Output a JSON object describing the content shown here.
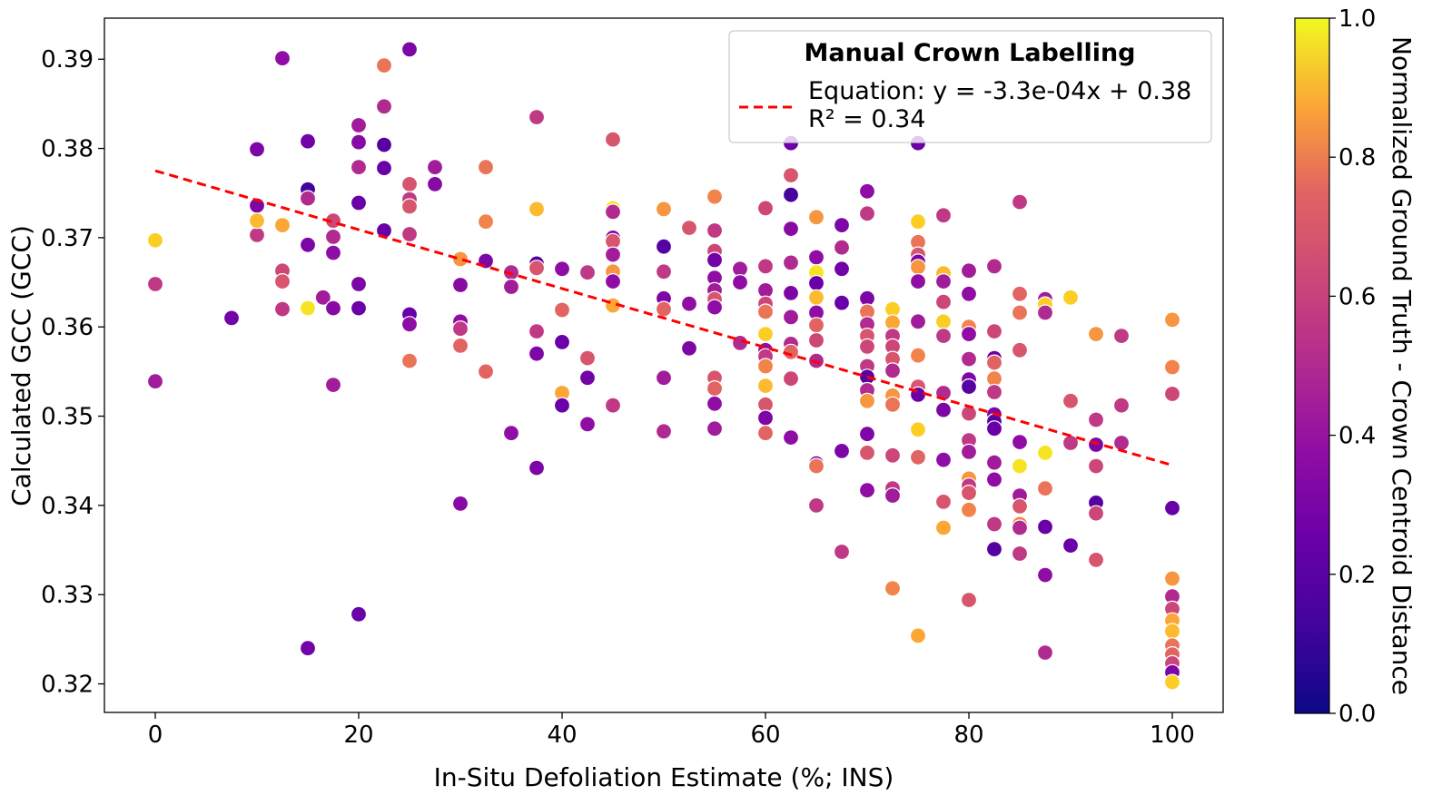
{
  "chart_data": {
    "type": "scatter",
    "xlabel": "In-Situ Defoliation Estimate (%; INS)",
    "ylabel": "Calculated GCC (GCC)",
    "xlim": [
      -5,
      105
    ],
    "ylim": [
      0.3168,
      0.3946
    ],
    "x_ticks": [
      0,
      20,
      40,
      60,
      80,
      100
    ],
    "x_tick_labels": [
      "0",
      "20",
      "40",
      "60",
      "80",
      "100"
    ],
    "y_ticks": [
      0.32,
      0.33,
      0.34,
      0.35,
      0.36,
      0.37,
      0.38,
      0.39
    ],
    "y_tick_labels": [
      "0.32",
      "0.33",
      "0.34",
      "0.35",
      "0.36",
      "0.37",
      "0.38",
      "0.39"
    ],
    "legend": {
      "title": "Manual Crown Labelling",
      "entry_line1": "Equation: y = -3.3e-04x + 0.38",
      "entry_line2": "R² = 0.34",
      "placement": "top-right"
    },
    "regression": {
      "slope": -0.00033,
      "intercept": 0.3775,
      "x_range": [
        0,
        100
      ],
      "color": "#ff0000",
      "style": "dashed"
    },
    "colorbar": {
      "label": "Normalized Ground Truth - Crown Centroid Distance",
      "colormap": "plasma",
      "range": [
        0,
        1
      ],
      "ticks": [
        0.0,
        0.2,
        0.4,
        0.6,
        0.8,
        1.0
      ],
      "tick_labels": [
        "0.0",
        "0.2",
        "0.4",
        "0.6",
        "0.8",
        "1.0"
      ]
    },
    "points": [
      [
        0,
        0.3697,
        0.9
      ],
      [
        0,
        0.3648,
        0.45
      ],
      [
        0,
        0.3539,
        0.35
      ],
      [
        7.5,
        0.361,
        0.22
      ],
      [
        10,
        0.3799,
        0.25
      ],
      [
        10,
        0.3736,
        0.25
      ],
      [
        10,
        0.3703,
        0.45
      ],
      [
        10,
        0.3719,
        0.85
      ],
      [
        12.5,
        0.3901,
        0.3
      ],
      [
        12.5,
        0.3663,
        0.5
      ],
      [
        12.5,
        0.3651,
        0.55
      ],
      [
        12.5,
        0.362,
        0.45
      ],
      [
        12.5,
        0.3714,
        0.8
      ],
      [
        15,
        0.3808,
        0.22
      ],
      [
        15,
        0.3754,
        0.1
      ],
      [
        15,
        0.3744,
        0.4
      ],
      [
        15,
        0.3692,
        0.25
      ],
      [
        15,
        0.3621,
        0.95
      ],
      [
        15,
        0.324,
        0.22
      ],
      [
        16.5,
        0.3633,
        0.35
      ],
      [
        17.5,
        0.3719,
        0.5
      ],
      [
        17.5,
        0.3701,
        0.4
      ],
      [
        17.5,
        0.3683,
        0.3
      ],
      [
        17.5,
        0.3621,
        0.28
      ],
      [
        17.5,
        0.3535,
        0.35
      ],
      [
        20,
        0.3826,
        0.35
      ],
      [
        20,
        0.3807,
        0.28
      ],
      [
        20,
        0.3779,
        0.4
      ],
      [
        20,
        0.3739,
        0.2
      ],
      [
        20,
        0.3648,
        0.25
      ],
      [
        20,
        0.3621,
        0.2
      ],
      [
        20,
        0.3278,
        0.2
      ],
      [
        22.5,
        0.3893,
        0.65
      ],
      [
        22.5,
        0.3847,
        0.4
      ],
      [
        22.5,
        0.3804,
        0.15
      ],
      [
        22.5,
        0.3778,
        0.2
      ],
      [
        22.5,
        0.3708,
        0.2
      ],
      [
        25,
        0.3911,
        0.25
      ],
      [
        25,
        0.376,
        0.55
      ],
      [
        25,
        0.3743,
        0.45
      ],
      [
        25,
        0.3735,
        0.55
      ],
      [
        25,
        0.3704,
        0.45
      ],
      [
        25,
        0.3614,
        0.2
      ],
      [
        25,
        0.3603,
        0.3
      ],
      [
        25,
        0.3562,
        0.65
      ],
      [
        27.5,
        0.3779,
        0.35
      ],
      [
        27.5,
        0.376,
        0.28
      ],
      [
        30,
        0.3676,
        0.75
      ],
      [
        30,
        0.3647,
        0.28
      ],
      [
        30,
        0.3606,
        0.3
      ],
      [
        30,
        0.3598,
        0.45
      ],
      [
        30,
        0.3579,
        0.6
      ],
      [
        30,
        0.3402,
        0.28
      ],
      [
        32.5,
        0.3779,
        0.65
      ],
      [
        32.5,
        0.3718,
        0.7
      ],
      [
        32.5,
        0.3674,
        0.25
      ],
      [
        32.5,
        0.355,
        0.6
      ],
      [
        35,
        0.3661,
        0.4
      ],
      [
        35,
        0.3645,
        0.35
      ],
      [
        35,
        0.3481,
        0.3
      ],
      [
        37.5,
        0.3835,
        0.45
      ],
      [
        37.5,
        0.3732,
        0.85
      ],
      [
        37.5,
        0.3671,
        0.15
      ],
      [
        37.5,
        0.3666,
        0.55
      ],
      [
        37.5,
        0.3595,
        0.45
      ],
      [
        37.5,
        0.357,
        0.25
      ],
      [
        37.5,
        0.3442,
        0.25
      ],
      [
        40,
        0.3665,
        0.3
      ],
      [
        40,
        0.3619,
        0.6
      ],
      [
        40,
        0.3583,
        0.2
      ],
      [
        40,
        0.3526,
        0.8
      ],
      [
        40,
        0.3512,
        0.2
      ],
      [
        42.5,
        0.3661,
        0.45
      ],
      [
        42.5,
        0.3565,
        0.55
      ],
      [
        42.5,
        0.3543,
        0.22
      ],
      [
        42.5,
        0.3491,
        0.3
      ],
      [
        45,
        0.381,
        0.55
      ],
      [
        45,
        0.3733,
        0.95
      ],
      [
        45,
        0.3729,
        0.4
      ],
      [
        45,
        0.37,
        0.25
      ],
      [
        45,
        0.3696,
        0.55
      ],
      [
        45,
        0.3681,
        0.35
      ],
      [
        45,
        0.3662,
        0.75
      ],
      [
        45,
        0.3651,
        0.3
      ],
      [
        45,
        0.3624,
        0.8
      ],
      [
        45,
        0.3512,
        0.45
      ],
      [
        50,
        0.3732,
        0.75
      ],
      [
        50,
        0.369,
        0.15
      ],
      [
        50,
        0.3662,
        0.45
      ],
      [
        50,
        0.3632,
        0.25
      ],
      [
        50,
        0.362,
        0.6
      ],
      [
        50,
        0.3543,
        0.35
      ],
      [
        50,
        0.3483,
        0.4
      ],
      [
        52.5,
        0.3711,
        0.55
      ],
      [
        52.5,
        0.3626,
        0.3
      ],
      [
        52.5,
        0.3576,
        0.25
      ],
      [
        55,
        0.3746,
        0.7
      ],
      [
        55,
        0.3708,
        0.45
      ],
      [
        55,
        0.3685,
        0.5
      ],
      [
        55,
        0.3675,
        0.22
      ],
      [
        55,
        0.3655,
        0.3
      ],
      [
        55,
        0.3641,
        0.35
      ],
      [
        55,
        0.3631,
        0.55
      ],
      [
        55,
        0.3622,
        0.3
      ],
      [
        55,
        0.3543,
        0.55
      ],
      [
        55,
        0.3531,
        0.6
      ],
      [
        55,
        0.3514,
        0.3
      ],
      [
        55,
        0.3486,
        0.35
      ],
      [
        57.5,
        0.3665,
        0.35
      ],
      [
        57.5,
        0.365,
        0.3
      ],
      [
        57.5,
        0.3582,
        0.4
      ],
      [
        60,
        0.3733,
        0.5
      ],
      [
        60,
        0.3668,
        0.45
      ],
      [
        60,
        0.3641,
        0.35
      ],
      [
        60,
        0.3626,
        0.5
      ],
      [
        60,
        0.3617,
        0.65
      ],
      [
        60,
        0.3592,
        0.9
      ],
      [
        60,
        0.3574,
        0.3
      ],
      [
        60,
        0.3567,
        0.45
      ],
      [
        60,
        0.3556,
        0.7
      ],
      [
        60,
        0.3534,
        0.85
      ],
      [
        60,
        0.3513,
        0.55
      ],
      [
        60,
        0.3498,
        0.25
      ],
      [
        60,
        0.3481,
        0.6
      ],
      [
        62.5,
        0.3806,
        0.2
      ],
      [
        62.5,
        0.377,
        0.55
      ],
      [
        62.5,
        0.3748,
        0.12
      ],
      [
        62.5,
        0.371,
        0.28
      ],
      [
        62.5,
        0.3672,
        0.4
      ],
      [
        62.5,
        0.3638,
        0.25
      ],
      [
        62.5,
        0.3611,
        0.35
      ],
      [
        62.5,
        0.3581,
        0.4
      ],
      [
        62.5,
        0.3572,
        0.6
      ],
      [
        62.5,
        0.3542,
        0.5
      ],
      [
        62.5,
        0.3476,
        0.3
      ],
      [
        65,
        0.3723,
        0.75
      ],
      [
        65,
        0.3678,
        0.3
      ],
      [
        65,
        0.3661,
        0.95
      ],
      [
        65,
        0.3649,
        0.2
      ],
      [
        65,
        0.3633,
        0.85
      ],
      [
        65,
        0.3616,
        0.3
      ],
      [
        65,
        0.3602,
        0.6
      ],
      [
        65,
        0.3585,
        0.5
      ],
      [
        65,
        0.3562,
        0.4
      ],
      [
        65,
        0.3447,
        0.25
      ],
      [
        65,
        0.3444,
        0.65
      ],
      [
        65,
        0.34,
        0.45
      ],
      [
        67.5,
        0.3714,
        0.25
      ],
      [
        67.5,
        0.3689,
        0.4
      ],
      [
        67.5,
        0.3665,
        0.22
      ],
      [
        67.5,
        0.3627,
        0.2
      ],
      [
        67.5,
        0.3461,
        0.25
      ],
      [
        67.5,
        0.3348,
        0.45
      ],
      [
        70,
        0.3752,
        0.3
      ],
      [
        70,
        0.3727,
        0.45
      ],
      [
        70,
        0.3632,
        0.25
      ],
      [
        70,
        0.3617,
        0.65
      ],
      [
        70,
        0.3603,
        0.4
      ],
      [
        70,
        0.359,
        0.55
      ],
      [
        70,
        0.3578,
        0.5
      ],
      [
        70,
        0.3556,
        0.45
      ],
      [
        70,
        0.3544,
        0.15
      ],
      [
        70,
        0.3529,
        0.4
      ],
      [
        70,
        0.3517,
        0.75
      ],
      [
        70,
        0.348,
        0.25
      ],
      [
        70,
        0.3459,
        0.55
      ],
      [
        70,
        0.3417,
        0.3
      ],
      [
        72.5,
        0.362,
        0.9
      ],
      [
        72.5,
        0.3605,
        0.8
      ],
      [
        72.5,
        0.359,
        0.45
      ],
      [
        72.5,
        0.3578,
        0.5
      ],
      [
        72.5,
        0.3564,
        0.55
      ],
      [
        72.5,
        0.3551,
        0.4
      ],
      [
        72.5,
        0.3523,
        0.75
      ],
      [
        72.5,
        0.3513,
        0.65
      ],
      [
        72.5,
        0.3456,
        0.5
      ],
      [
        72.5,
        0.3419,
        0.45
      ],
      [
        72.5,
        0.3411,
        0.35
      ],
      [
        72.5,
        0.3307,
        0.7
      ],
      [
        75,
        0.3806,
        0.2
      ],
      [
        75,
        0.3718,
        0.9
      ],
      [
        75,
        0.3695,
        0.65
      ],
      [
        75,
        0.3681,
        0.55
      ],
      [
        75,
        0.3673,
        0.25
      ],
      [
        75,
        0.3667,
        0.75
      ],
      [
        75,
        0.3651,
        0.3
      ],
      [
        75,
        0.3606,
        0.35
      ],
      [
        75,
        0.3568,
        0.7
      ],
      [
        75,
        0.3533,
        0.55
      ],
      [
        75,
        0.3524,
        0.2
      ],
      [
        75,
        0.3485,
        0.9
      ],
      [
        75,
        0.3454,
        0.6
      ],
      [
        75,
        0.3254,
        0.8
      ],
      [
        77.5,
        0.3725,
        0.45
      ],
      [
        77.5,
        0.366,
        0.85
      ],
      [
        77.5,
        0.3651,
        0.35
      ],
      [
        77.5,
        0.3628,
        0.5
      ],
      [
        77.5,
        0.3606,
        0.9
      ],
      [
        77.5,
        0.359,
        0.45
      ],
      [
        77.5,
        0.3526,
        0.4
      ],
      [
        77.5,
        0.3507,
        0.25
      ],
      [
        77.5,
        0.3451,
        0.3
      ],
      [
        77.5,
        0.3404,
        0.55
      ],
      [
        77.5,
        0.3375,
        0.8
      ],
      [
        80,
        0.3663,
        0.35
      ],
      [
        80,
        0.3637,
        0.3
      ],
      [
        80,
        0.36,
        0.7
      ],
      [
        80,
        0.3592,
        0.3
      ],
      [
        80,
        0.3564,
        0.4
      ],
      [
        80,
        0.3541,
        0.25
      ],
      [
        80,
        0.3533,
        0.15
      ],
      [
        80,
        0.3503,
        0.5
      ],
      [
        80,
        0.3473,
        0.45
      ],
      [
        80,
        0.346,
        0.35
      ],
      [
        80,
        0.343,
        0.75
      ],
      [
        80,
        0.3422,
        0.45
      ],
      [
        80,
        0.3414,
        0.55
      ],
      [
        80,
        0.3395,
        0.7
      ],
      [
        80,
        0.3294,
        0.55
      ],
      [
        82.5,
        0.3668,
        0.4
      ],
      [
        82.5,
        0.3595,
        0.5
      ],
      [
        82.5,
        0.3565,
        0.2
      ],
      [
        82.5,
        0.356,
        0.6
      ],
      [
        82.5,
        0.3542,
        0.7
      ],
      [
        82.5,
        0.3527,
        0.45
      ],
      [
        82.5,
        0.3502,
        0.25
      ],
      [
        82.5,
        0.3494,
        0.15
      ],
      [
        82.5,
        0.3486,
        0.2
      ],
      [
        82.5,
        0.3448,
        0.35
      ],
      [
        82.5,
        0.3429,
        0.3
      ],
      [
        82.5,
        0.3379,
        0.45
      ],
      [
        82.5,
        0.3351,
        0.15
      ],
      [
        85,
        0.374,
        0.45
      ],
      [
        85,
        0.3637,
        0.6
      ],
      [
        85,
        0.3616,
        0.65
      ],
      [
        85,
        0.3574,
        0.55
      ],
      [
        85,
        0.3471,
        0.3
      ],
      [
        85,
        0.3444,
        0.95
      ],
      [
        85,
        0.3411,
        0.35
      ],
      [
        85,
        0.3399,
        0.55
      ],
      [
        85,
        0.3379,
        0.7
      ],
      [
        85,
        0.3375,
        0.4
      ],
      [
        85,
        0.3346,
        0.45
      ],
      [
        87.5,
        0.3631,
        0.35
      ],
      [
        87.5,
        0.3625,
        0.9
      ],
      [
        87.5,
        0.3616,
        0.4
      ],
      [
        87.5,
        0.3459,
        0.95
      ],
      [
        87.5,
        0.3419,
        0.65
      ],
      [
        87.5,
        0.3376,
        0.2
      ],
      [
        87.5,
        0.3322,
        0.3
      ],
      [
        87.5,
        0.3235,
        0.4
      ],
      [
        90,
        0.3633,
        0.9
      ],
      [
        90,
        0.3517,
        0.55
      ],
      [
        90,
        0.347,
        0.45
      ],
      [
        90,
        0.3355,
        0.2
      ],
      [
        92.5,
        0.3592,
        0.75
      ],
      [
        92.5,
        0.3496,
        0.45
      ],
      [
        92.5,
        0.3468,
        0.25
      ],
      [
        92.5,
        0.3444,
        0.5
      ],
      [
        92.5,
        0.3403,
        0.15
      ],
      [
        92.5,
        0.3391,
        0.5
      ],
      [
        92.5,
        0.3339,
        0.55
      ],
      [
        95,
        0.359,
        0.45
      ],
      [
        95,
        0.3512,
        0.45
      ],
      [
        95,
        0.347,
        0.4
      ],
      [
        100,
        0.3608,
        0.75
      ],
      [
        100,
        0.3555,
        0.7
      ],
      [
        100,
        0.3525,
        0.5
      ],
      [
        100,
        0.3397,
        0.2
      ],
      [
        100,
        0.3318,
        0.75
      ],
      [
        100,
        0.3298,
        0.4
      ],
      [
        100,
        0.3284,
        0.5
      ],
      [
        100,
        0.3271,
        0.8
      ],
      [
        100,
        0.3259,
        0.85
      ],
      [
        100,
        0.3243,
        0.65
      ],
      [
        100,
        0.3233,
        0.6
      ],
      [
        100,
        0.3223,
        0.5
      ],
      [
        100,
        0.3213,
        0.25
      ],
      [
        100,
        0.3202,
        0.9
      ]
    ]
  }
}
